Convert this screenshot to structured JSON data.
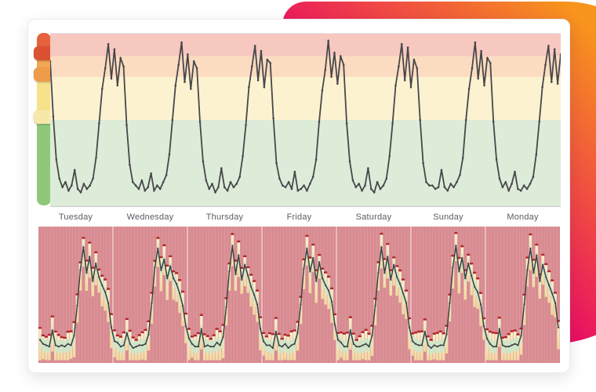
{
  "day_labels": [
    "Tuesday",
    "Wednesday",
    "Thursday",
    "Friday",
    "Saturday",
    "Sunday",
    "Monday"
  ],
  "decor": {
    "gradient_start": "#e90e63",
    "gradient_end": "#f7941d"
  },
  "gauge": {
    "track": [
      {
        "name": "red",
        "color": "#e6623c"
      },
      {
        "name": "orange",
        "color": "#f2a854"
      },
      {
        "name": "yellow",
        "color": "#f6e28b"
      },
      {
        "name": "green",
        "color": "#90c87a"
      }
    ],
    "handles": [
      {
        "name": "red",
        "color": "#da5231"
      },
      {
        "name": "orange",
        "color": "#ee9c49"
      },
      {
        "name": "yellow",
        "color": "#f7e7a9"
      }
    ]
  },
  "chart_data": [
    {
      "id": "weekly-trend",
      "type": "line",
      "title": "",
      "xlabel": "",
      "ylabel": "",
      "categories": [
        "Tuesday",
        "Wednesday",
        "Thursday",
        "Friday",
        "Saturday",
        "Sunday",
        "Monday"
      ],
      "points_per_day": 24,
      "value_scale": "fraction of plot height (0 = bottom, 1 = top)",
      "ylim": [
        0,
        1
      ],
      "grid": false,
      "line_color": "#47474a",
      "bands": [
        {
          "name": "red",
          "color": "#f6c8bf",
          "from": 0.87,
          "to": 1.0
        },
        {
          "name": "orange",
          "color": "#fbdcc1",
          "from": 0.75,
          "to": 0.87
        },
        {
          "name": "yellow",
          "color": "#fdf2d0",
          "from": 0.5,
          "to": 0.75
        },
        {
          "name": "green",
          "color": "#ddecd9",
          "from": 0.0,
          "to": 0.5
        }
      ],
      "thresholds": {
        "red": 0.87,
        "orange": 0.75,
        "yellow": 0.5
      },
      "series": [
        {
          "name": "value",
          "days": [
            [
              0.84,
              0.52,
              0.27,
              0.16,
              0.11,
              0.14,
              0.09,
              0.12,
              0.21,
              0.1,
              0.08,
              0.13,
              0.1,
              0.12,
              0.16,
              0.28,
              0.48,
              0.68,
              0.8,
              0.94,
              0.74,
              0.91,
              0.7,
              0.86
            ],
            [
              0.81,
              0.47,
              0.24,
              0.14,
              0.12,
              0.1,
              0.15,
              0.09,
              0.11,
              0.19,
              0.09,
              0.12,
              0.1,
              0.14,
              0.18,
              0.3,
              0.5,
              0.7,
              0.82,
              0.95,
              0.72,
              0.88,
              0.68,
              0.84
            ],
            [
              0.8,
              0.49,
              0.26,
              0.15,
              0.1,
              0.13,
              0.08,
              0.11,
              0.22,
              0.11,
              0.09,
              0.14,
              0.11,
              0.13,
              0.17,
              0.29,
              0.47,
              0.69,
              0.81,
              0.93,
              0.73,
              0.9,
              0.69,
              0.85
            ],
            [
              0.83,
              0.51,
              0.25,
              0.16,
              0.12,
              0.11,
              0.14,
              0.1,
              0.2,
              0.09,
              0.1,
              0.12,
              0.09,
              0.13,
              0.17,
              0.27,
              0.49,
              0.67,
              0.79,
              0.96,
              0.75,
              0.89,
              0.71,
              0.87
            ],
            [
              0.82,
              0.48,
              0.26,
              0.15,
              0.11,
              0.13,
              0.09,
              0.12,
              0.22,
              0.1,
              0.08,
              0.14,
              0.1,
              0.12,
              0.16,
              0.29,
              0.48,
              0.7,
              0.81,
              0.94,
              0.73,
              0.92,
              0.69,
              0.85
            ],
            [
              0.8,
              0.5,
              0.25,
              0.14,
              0.12,
              0.12,
              0.1,
              0.11,
              0.21,
              0.11,
              0.09,
              0.13,
              0.11,
              0.14,
              0.18,
              0.28,
              0.5,
              0.68,
              0.8,
              0.95,
              0.74,
              0.9,
              0.7,
              0.86
            ],
            [
              0.83,
              0.49,
              0.27,
              0.16,
              0.11,
              0.14,
              0.09,
              0.13,
              0.2,
              0.1,
              0.09,
              0.12,
              0.1,
              0.13,
              0.17,
              0.3,
              0.49,
              0.69,
              0.82,
              0.93,
              0.72,
              0.91,
              0.71,
              0.88
            ]
          ]
        }
      ]
    },
    {
      "id": "weekly-detail",
      "type": "line-with-range-bars",
      "title": "",
      "categories": [
        "Tuesday",
        "Wednesday",
        "Thursday",
        "Friday",
        "Saturday",
        "Sunday",
        "Monday"
      ],
      "points_per_day": 24,
      "value_scale": "fraction of plot height (0 = bottom, 1 = top)",
      "ylim": [
        0,
        1
      ],
      "background": "#d88b91",
      "bar_color_top": "#f8efcc",
      "bar_color_bottom": "#f2d8a0",
      "cap_color": "#b2262c",
      "band_color": "#cfe5c8",
      "line_color": "#3d4043",
      "days": [
        [
          0.17,
          0.14,
          0.13,
          0.12,
          0.24,
          0.13,
          0.12,
          0.13,
          0.12,
          0.14,
          0.13,
          0.2,
          0.42,
          0.68,
          0.85,
          0.66,
          0.78,
          0.6,
          0.73,
          0.63,
          0.57,
          0.52,
          0.44,
          0.26
        ],
        [
          0.16,
          0.15,
          0.12,
          0.13,
          0.22,
          0.14,
          0.11,
          0.12,
          0.13,
          0.13,
          0.14,
          0.21,
          0.44,
          0.7,
          0.84,
          0.68,
          0.76,
          0.62,
          0.71,
          0.62,
          0.58,
          0.51,
          0.42,
          0.27
        ],
        [
          0.18,
          0.14,
          0.12,
          0.12,
          0.25,
          0.12,
          0.13,
          0.12,
          0.12,
          0.15,
          0.13,
          0.19,
          0.41,
          0.67,
          0.86,
          0.65,
          0.79,
          0.61,
          0.72,
          0.64,
          0.56,
          0.5,
          0.43,
          0.25
        ],
        [
          0.16,
          0.13,
          0.13,
          0.11,
          0.23,
          0.13,
          0.12,
          0.14,
          0.11,
          0.13,
          0.14,
          0.22,
          0.43,
          0.69,
          0.84,
          0.67,
          0.77,
          0.6,
          0.74,
          0.62,
          0.57,
          0.53,
          0.45,
          0.28
        ],
        [
          0.17,
          0.15,
          0.12,
          0.12,
          0.24,
          0.14,
          0.12,
          0.12,
          0.13,
          0.14,
          0.12,
          0.2,
          0.42,
          0.66,
          0.85,
          0.66,
          0.78,
          0.61,
          0.72,
          0.63,
          0.58,
          0.51,
          0.44,
          0.26
        ],
        [
          0.16,
          0.14,
          0.13,
          0.13,
          0.23,
          0.13,
          0.11,
          0.13,
          0.12,
          0.13,
          0.13,
          0.21,
          0.44,
          0.7,
          0.86,
          0.67,
          0.77,
          0.62,
          0.73,
          0.64,
          0.56,
          0.52,
          0.43,
          0.27
        ],
        [
          0.18,
          0.14,
          0.12,
          0.12,
          0.25,
          0.13,
          0.12,
          0.12,
          0.13,
          0.14,
          0.13,
          0.2,
          0.43,
          0.68,
          0.84,
          0.66,
          0.79,
          0.6,
          0.72,
          0.63,
          0.57,
          0.51,
          0.44,
          0.26
        ]
      ]
    }
  ]
}
